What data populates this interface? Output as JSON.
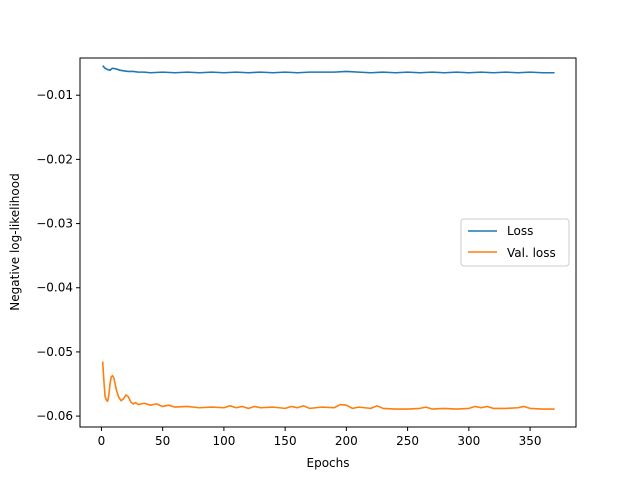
{
  "chart_data": {
    "type": "line",
    "title": "",
    "xlabel": "Epochs",
    "ylabel": "Negative log-likelihood",
    "xlim": [
      -17.5,
      387.5
    ],
    "ylim": [
      -0.0617,
      -0.0042
    ],
    "xticks": [
      0,
      50,
      100,
      150,
      200,
      250,
      300,
      350
    ],
    "xtick_labels": [
      "0",
      "50",
      "100",
      "150",
      "200",
      "250",
      "300",
      "350"
    ],
    "yticks": [
      -0.06,
      -0.05,
      -0.04,
      -0.03,
      -0.02,
      -0.01
    ],
    "ytick_labels": [
      "−0.06",
      "−0.05",
      "−0.04",
      "−0.03",
      "−0.02",
      "−0.01"
    ],
    "grid": false,
    "legend_position": "center-right",
    "series": [
      {
        "name": "Loss",
        "color": "#1f77b4",
        "x": [
          1,
          3,
          5,
          7,
          9,
          12,
          15,
          18,
          22,
          26,
          30,
          35,
          40,
          50,
          60,
          70,
          80,
          90,
          100,
          110,
          120,
          130,
          140,
          150,
          160,
          170,
          180,
          190,
          200,
          210,
          220,
          230,
          240,
          250,
          260,
          270,
          280,
          290,
          300,
          310,
          320,
          330,
          340,
          350,
          360,
          370
        ],
        "values": [
          -0.0054,
          -0.0058,
          -0.006,
          -0.0061,
          -0.0058,
          -0.0059,
          -0.0061,
          -0.0062,
          -0.0063,
          -0.0063,
          -0.0064,
          -0.0064,
          -0.0065,
          -0.0064,
          -0.0065,
          -0.0064,
          -0.0065,
          -0.0064,
          -0.0065,
          -0.0064,
          -0.0065,
          -0.0064,
          -0.0065,
          -0.0064,
          -0.0065,
          -0.0064,
          -0.0064,
          -0.0064,
          -0.0063,
          -0.0064,
          -0.0065,
          -0.0064,
          -0.0065,
          -0.0064,
          -0.0065,
          -0.0064,
          -0.0065,
          -0.0064,
          -0.0065,
          -0.0064,
          -0.0065,
          -0.0064,
          -0.0065,
          -0.0064,
          -0.0065,
          -0.0065
        ]
      },
      {
        "name": "Val. loss",
        "color": "#ff7f0e",
        "x": [
          1,
          2,
          3,
          4,
          5,
          6,
          7,
          8,
          9,
          10,
          11,
          12,
          14,
          16,
          18,
          20,
          22,
          24,
          26,
          28,
          30,
          35,
          40,
          45,
          50,
          55,
          60,
          70,
          80,
          90,
          100,
          105,
          110,
          115,
          120,
          125,
          130,
          140,
          150,
          155,
          160,
          165,
          170,
          180,
          190,
          195,
          200,
          205,
          210,
          220,
          225,
          230,
          240,
          250,
          260,
          265,
          270,
          280,
          290,
          300,
          305,
          310,
          315,
          320,
          330,
          340,
          345,
          350,
          360,
          370
        ],
        "values": [
          -0.0515,
          -0.0545,
          -0.057,
          -0.0575,
          -0.0577,
          -0.0568,
          -0.055,
          -0.0539,
          -0.0537,
          -0.054,
          -0.0548,
          -0.0558,
          -0.057,
          -0.0576,
          -0.0573,
          -0.0567,
          -0.057,
          -0.0578,
          -0.0581,
          -0.0579,
          -0.0582,
          -0.058,
          -0.0583,
          -0.0581,
          -0.0585,
          -0.0583,
          -0.0586,
          -0.0585,
          -0.0587,
          -0.0586,
          -0.0587,
          -0.0584,
          -0.0587,
          -0.0585,
          -0.0588,
          -0.0585,
          -0.0587,
          -0.0586,
          -0.0588,
          -0.0585,
          -0.0587,
          -0.0584,
          -0.0588,
          -0.0586,
          -0.0587,
          -0.0582,
          -0.0583,
          -0.0588,
          -0.0586,
          -0.0588,
          -0.0584,
          -0.0588,
          -0.0589,
          -0.0589,
          -0.0588,
          -0.0586,
          -0.0589,
          -0.0588,
          -0.0589,
          -0.0588,
          -0.0585,
          -0.0587,
          -0.0585,
          -0.0588,
          -0.0588,
          -0.0587,
          -0.0585,
          -0.0588,
          -0.0589,
          -0.0589
        ]
      }
    ]
  }
}
